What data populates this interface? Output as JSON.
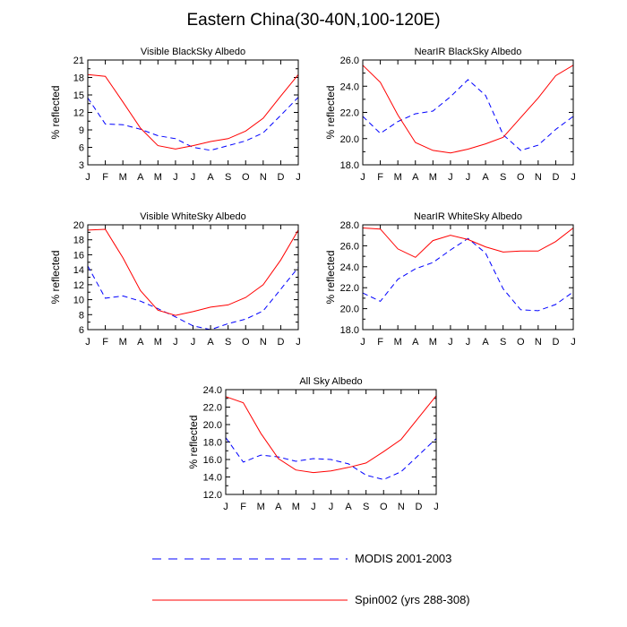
{
  "title": "Eastern China(30-40N,100-120E)",
  "colors": {
    "modis": "#0000ff",
    "spin": "#ff0000",
    "axis": "#000000"
  },
  "legend": {
    "entries": [
      {
        "label": "MODIS 2001-2003",
        "series": "modis",
        "style": "dashed"
      },
      {
        "label": "Spin002 (yrs 288-308)",
        "series": "spin",
        "style": "solid"
      }
    ]
  },
  "chart_data": [
    {
      "type": "line",
      "title": "Visible BlackSky Albedo",
      "ylabel": "% reflected",
      "categories": [
        "J",
        "F",
        "M",
        "A",
        "M",
        "J",
        "J",
        "A",
        "S",
        "O",
        "N",
        "D",
        "J"
      ],
      "ylim": [
        3,
        21
      ],
      "yticks": [
        "3",
        "6",
        "9",
        "12",
        "15",
        "18",
        "21"
      ],
      "series": [
        {
          "name": "MODIS 2001-2003",
          "values": [
            14.5,
            10.0,
            9.9,
            9.1,
            8.0,
            7.5,
            6.0,
            5.5,
            6.3,
            7.1,
            8.5,
            11.5,
            14.6
          ]
        },
        {
          "name": "Spin002 (yrs 288-308)",
          "values": [
            18.5,
            18.2,
            13.8,
            9.3,
            6.3,
            5.7,
            6.3,
            7.0,
            7.5,
            8.8,
            11.0,
            14.8,
            18.5
          ]
        }
      ]
    },
    {
      "type": "line",
      "title": "NearIR BlackSky Albedo",
      "ylabel": "% reflected",
      "categories": [
        "J",
        "F",
        "M",
        "A",
        "M",
        "J",
        "J",
        "A",
        "S",
        "O",
        "N",
        "D",
        "J"
      ],
      "ylim": [
        18,
        26
      ],
      "yticks": [
        "18.0",
        "20.0",
        "22.0",
        "24.0",
        "26.0"
      ],
      "series": [
        {
          "name": "MODIS 2001-2003",
          "values": [
            21.7,
            20.4,
            21.3,
            21.9,
            22.1,
            23.2,
            24.5,
            23.3,
            20.3,
            19.1,
            19.5,
            20.7,
            21.7
          ]
        },
        {
          "name": "Spin002 (yrs 288-308)",
          "values": [
            25.6,
            24.3,
            21.8,
            19.7,
            19.1,
            18.9,
            19.2,
            19.6,
            20.1,
            21.6,
            23.1,
            24.8,
            25.6
          ]
        }
      ]
    },
    {
      "type": "line",
      "title": "Visible WhiteSky Albedo",
      "ylabel": "% reflected",
      "categories": [
        "J",
        "F",
        "M",
        "A",
        "M",
        "J",
        "J",
        "A",
        "S",
        "O",
        "N",
        "D",
        "J"
      ],
      "ylim": [
        6,
        20
      ],
      "yticks": [
        "6",
        "8",
        "10",
        "12",
        "14",
        "16",
        "18",
        "20"
      ],
      "series": [
        {
          "name": "MODIS 2001-2003",
          "values": [
            14.5,
            10.2,
            10.5,
            9.8,
            8.8,
            7.7,
            6.5,
            6.0,
            6.8,
            7.4,
            8.5,
            11.4,
            14.3
          ]
        },
        {
          "name": "Spin002 (yrs 288-308)",
          "values": [
            19.3,
            19.4,
            15.6,
            11.2,
            8.6,
            7.9,
            8.4,
            9.0,
            9.3,
            10.3,
            12.0,
            15.3,
            19.3
          ]
        }
      ]
    },
    {
      "type": "line",
      "title": "NearIR WhiteSky Albedo",
      "ylabel": "% reflected",
      "categories": [
        "J",
        "F",
        "M",
        "A",
        "M",
        "J",
        "J",
        "A",
        "S",
        "O",
        "N",
        "D",
        "J"
      ],
      "ylim": [
        18,
        28
      ],
      "yticks": [
        "18.0",
        "20.0",
        "22.0",
        "24.0",
        "26.0",
        "28.0"
      ],
      "series": [
        {
          "name": "MODIS 2001-2003",
          "values": [
            21.5,
            20.7,
            22.8,
            23.8,
            24.4,
            25.6,
            26.7,
            25.3,
            21.9,
            19.9,
            19.8,
            20.4,
            21.6
          ]
        },
        {
          "name": "Spin002 (yrs 288-308)",
          "values": [
            27.7,
            27.6,
            25.7,
            24.9,
            26.5,
            27.0,
            26.6,
            25.9,
            25.4,
            25.5,
            25.5,
            26.4,
            27.7
          ]
        }
      ]
    },
    {
      "type": "line",
      "title": "All Sky Albedo",
      "ylabel": "% reflected",
      "categories": [
        "J",
        "F",
        "M",
        "A",
        "M",
        "J",
        "J",
        "A",
        "S",
        "O",
        "N",
        "D",
        "J"
      ],
      "ylim": [
        12,
        24
      ],
      "yticks": [
        "12.0",
        "14.0",
        "16.0",
        "18.0",
        "20.0",
        "22.0",
        "24.0"
      ],
      "series": [
        {
          "name": "MODIS 2001-2003",
          "values": [
            18.5,
            15.7,
            16.5,
            16.3,
            15.8,
            16.1,
            16.0,
            15.5,
            14.2,
            13.7,
            14.6,
            16.5,
            18.4
          ]
        },
        {
          "name": "Spin002 (yrs 288-308)",
          "values": [
            23.2,
            22.5,
            19.0,
            16.1,
            14.8,
            14.5,
            14.7,
            15.1,
            15.6,
            16.9,
            18.3,
            20.8,
            23.3
          ]
        }
      ]
    }
  ]
}
